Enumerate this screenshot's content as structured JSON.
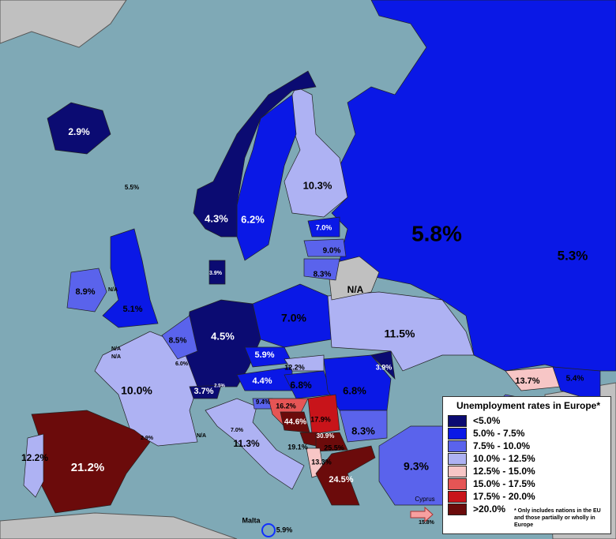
{
  "map": {
    "labels": [
      "2.9%",
      "5.5%",
      "4.3%",
      "6.2%",
      "10.3%",
      "5.8%",
      "5.3%",
      "7.0%",
      "9.0%",
      "8.3%",
      "N/A",
      "3.9%",
      "8.9%",
      "N/A",
      "5.1%",
      "4.5%",
      "7.0%",
      "11.5%",
      "8.5%",
      "N/A",
      "N/A",
      "6.0%",
      "5.9%",
      "12.2%",
      "3.9%",
      "10.0%",
      "4.4%",
      "2.5%",
      "3.7%",
      "6.8%",
      "6.8%",
      "13.7%",
      "5.4%",
      "9.4%",
      "16.2%",
      "44.6%",
      "17.9%",
      "8.3%",
      "2.9%",
      "N/A",
      "7.0%",
      "30.9%",
      "11.3%",
      "19.1%",
      "25.5%",
      "13.3%",
      "12.2%",
      "21.2%",
      "9.3%",
      "24.5%",
      "15.8%",
      "5.9%"
    ],
    "cyprus": "Cyprus",
    "malta": "Malta"
  },
  "legend": {
    "title": "Unemployment rates in Europe*",
    "items": [
      {
        "label": "<5.0%",
        "color": "#0b0b72"
      },
      {
        "label": "5.0% - 7.5%",
        "color": "#0a18e6"
      },
      {
        "label": "7.5% - 10.0%",
        "color": "#5a63ec"
      },
      {
        "label": "10.0% - 12.5%",
        "color": "#aeb2f3"
      },
      {
        "label": "12.5% - 15.0%",
        "color": "#f7c6c6"
      },
      {
        "label": "15.0% - 17.5%",
        "color": "#e55555"
      },
      {
        "label": "17.5% - 20.0%",
        "color": "#c8141a"
      },
      {
        "label": ">20.0%",
        "color": "#6b0b0b"
      }
    ],
    "note": "* Only includes nations in the EU and those partially or wholly in Europe"
  }
}
